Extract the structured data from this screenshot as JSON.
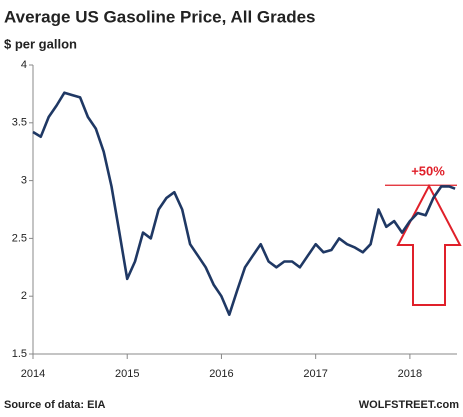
{
  "chart_data": {
    "type": "line",
    "title": "Average US Gasoline Price, All Grades",
    "subtitle": "$ per gallon",
    "source": "Source of data: EIA",
    "brand": "WOLFSTREET.com",
    "annotation": "+50%",
    "reference_line": 2.96,
    "x": [
      2014,
      2014.083,
      2014.167,
      2014.25,
      2014.333,
      2014.417,
      2014.5,
      2014.583,
      2014.667,
      2014.75,
      2014.833,
      2014.917,
      2015,
      2015.083,
      2015.167,
      2015.25,
      2015.333,
      2015.417,
      2015.5,
      2015.583,
      2015.667,
      2015.75,
      2015.833,
      2015.917,
      2016,
      2016.083,
      2016.167,
      2016.25,
      2016.333,
      2016.417,
      2016.5,
      2016.583,
      2016.667,
      2016.75,
      2016.833,
      2016.917,
      2017,
      2017.083,
      2017.167,
      2017.25,
      2017.333,
      2017.417,
      2017.5,
      2017.583,
      2017.667,
      2017.75,
      2017.833,
      2017.917,
      2018,
      2018.083,
      2018.167,
      2018.25,
      2018.333,
      2018.417,
      2018.48
    ],
    "series": [
      {
        "name": "Average US Gasoline Price",
        "color": "#1f3864",
        "values": [
          3.42,
          3.38,
          3.55,
          3.65,
          3.76,
          3.74,
          3.72,
          3.55,
          3.45,
          3.25,
          2.95,
          2.55,
          2.15,
          2.3,
          2.55,
          2.5,
          2.75,
          2.85,
          2.9,
          2.75,
          2.45,
          2.35,
          2.25,
          2.1,
          2.0,
          1.84,
          2.05,
          2.25,
          2.35,
          2.45,
          2.3,
          2.25,
          2.3,
          2.3,
          2.25,
          2.35,
          2.45,
          2.38,
          2.4,
          2.5,
          2.45,
          2.42,
          2.38,
          2.45,
          2.75,
          2.6,
          2.65,
          2.55,
          2.65,
          2.72,
          2.7,
          2.85,
          2.95,
          2.95,
          2.93
        ]
      }
    ],
    "xlim": [
      2014,
      2018.5
    ],
    "xticks": [
      2014,
      2015,
      2016,
      2017,
      2018
    ],
    "ylim": [
      1.5,
      4
    ],
    "yticks": [
      1.5,
      2,
      2.5,
      3,
      3.5,
      4
    ],
    "grid": false
  }
}
